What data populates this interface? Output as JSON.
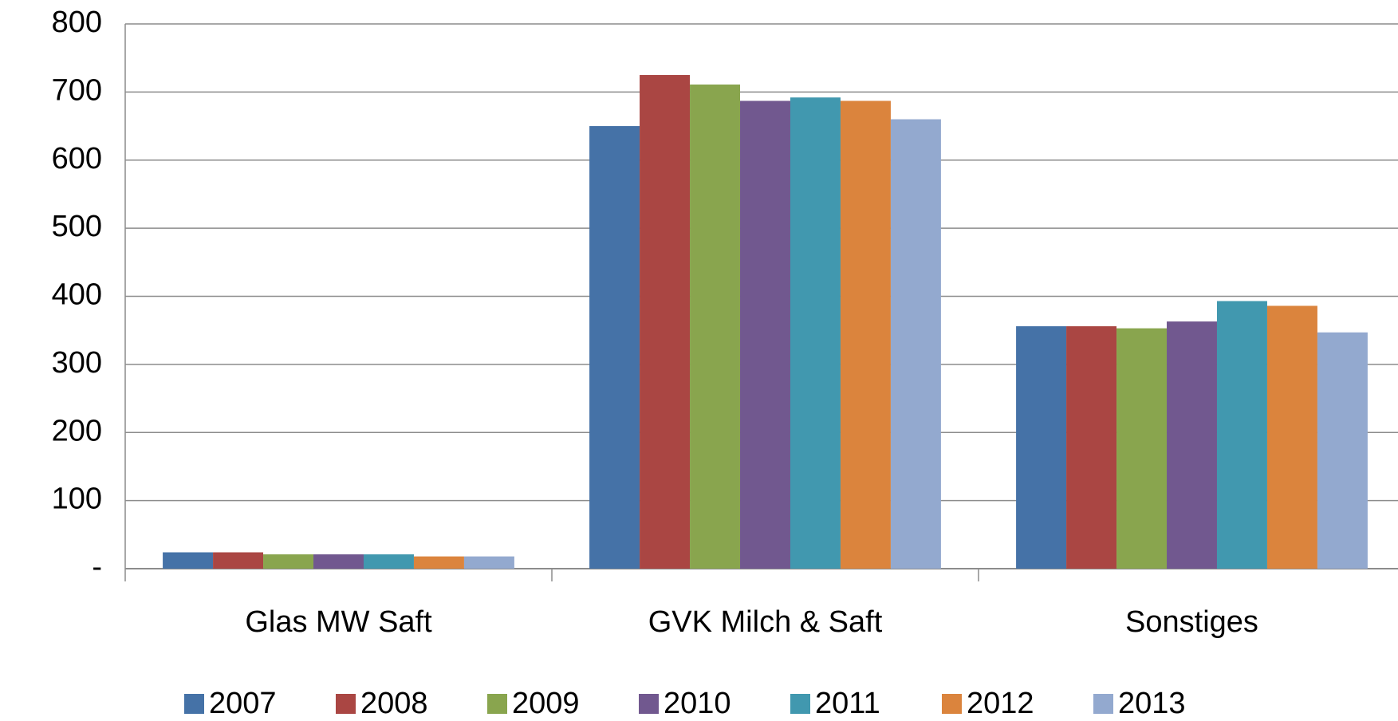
{
  "chart_data": {
    "type": "bar",
    "categories": [
      "Glas MW Saft",
      "GVK Milch & Saft",
      "Sonstiges"
    ],
    "series": [
      {
        "name": "2007",
        "color": "#4572a7",
        "values": [
          24,
          650,
          356
        ]
      },
      {
        "name": "2008",
        "color": "#aa4643",
        "values": [
          24,
          725,
          356
        ]
      },
      {
        "name": "2009",
        "color": "#89a54e",
        "values": [
          21,
          711,
          353
        ]
      },
      {
        "name": "2010",
        "color": "#71588f",
        "values": [
          21,
          687,
          363
        ]
      },
      {
        "name": "2011",
        "color": "#4198af",
        "values": [
          21,
          692,
          393
        ]
      },
      {
        "name": "2012",
        "color": "#db843d",
        "values": [
          18,
          687,
          386
        ]
      },
      {
        "name": "2013",
        "color": "#93a9cf",
        "values": [
          18,
          660,
          347
        ]
      }
    ],
    "ylim": [
      0,
      800
    ],
    "yticks": [
      {
        "value": 0,
        "label": "-"
      },
      100,
      200,
      300,
      400,
      500,
      600,
      700,
      800
    ],
    "grid": true,
    "legend": "bottom"
  }
}
